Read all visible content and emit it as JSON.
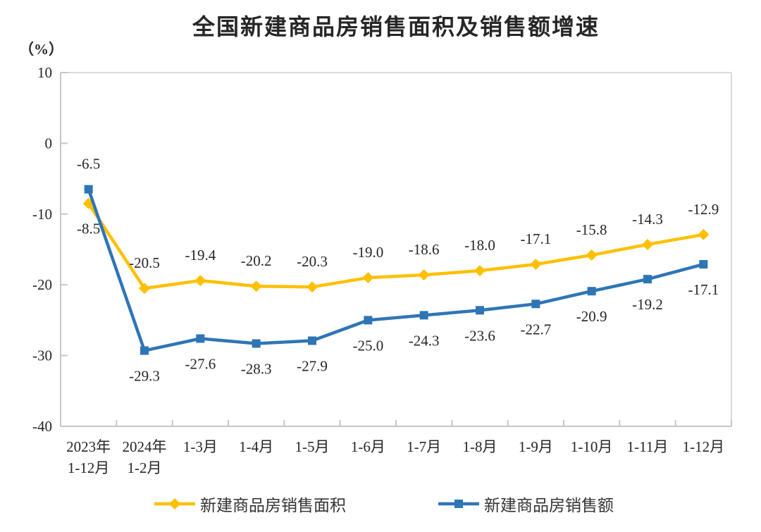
{
  "title": "全国新建商品房销售面积及销售额增速",
  "unit_label": "（%）",
  "legend": [
    {
      "label": "新建商品房销售面积",
      "color": "#FFC000",
      "marker": "diamond"
    },
    {
      "label": "新建商品房销售额",
      "color": "#2E75B6",
      "marker": "square"
    }
  ],
  "colors": {
    "series_area": "#FFC000",
    "series_amount": "#2E75B6",
    "axis_line": "#C6C6C6",
    "border_line": "#D9D9D9",
    "text": "#262626"
  },
  "chart_data": {
    "type": "line",
    "title": "全国新建商品房销售面积及销售额增速",
    "ylabel": "（%）",
    "xlabel": "",
    "grid": false,
    "legend_position": "bottom",
    "ylim": [
      -40,
      10
    ],
    "y_ticks": [
      10,
      0,
      -10,
      -20,
      -30,
      -40
    ],
    "categories": [
      [
        "2023年",
        "1-12月"
      ],
      [
        "2024年",
        "1-2月"
      ],
      [
        "1-3月"
      ],
      [
        "1-4月"
      ],
      [
        "1-5月"
      ],
      [
        "1-6月"
      ],
      [
        "1-7月"
      ],
      [
        "1-8月"
      ],
      [
        "1-9月"
      ],
      [
        "1-10月"
      ],
      [
        "1-11月"
      ],
      [
        "1-12月"
      ]
    ],
    "series": [
      {
        "name": "新建商品房销售面积",
        "color": "#FFC000",
        "marker": "diamond",
        "values": [
          -8.5,
          -20.5,
          -19.4,
          -20.2,
          -20.3,
          -19.0,
          -18.6,
          -18.0,
          -17.1,
          -15.8,
          -14.3,
          -12.9
        ],
        "label_side": [
          "below",
          "above",
          "above",
          "above",
          "above",
          "above",
          "above",
          "above",
          "above",
          "above",
          "above",
          "above"
        ]
      },
      {
        "name": "新建商品房销售额",
        "color": "#2E75B6",
        "marker": "square",
        "values": [
          -6.5,
          -29.3,
          -27.6,
          -28.3,
          -27.9,
          -25.0,
          -24.3,
          -23.6,
          -22.7,
          -20.9,
          -19.2,
          -17.1
        ],
        "label_side": [
          "above",
          "below",
          "below",
          "below",
          "below",
          "below",
          "below",
          "below",
          "below",
          "below",
          "below",
          "below"
        ]
      }
    ]
  }
}
